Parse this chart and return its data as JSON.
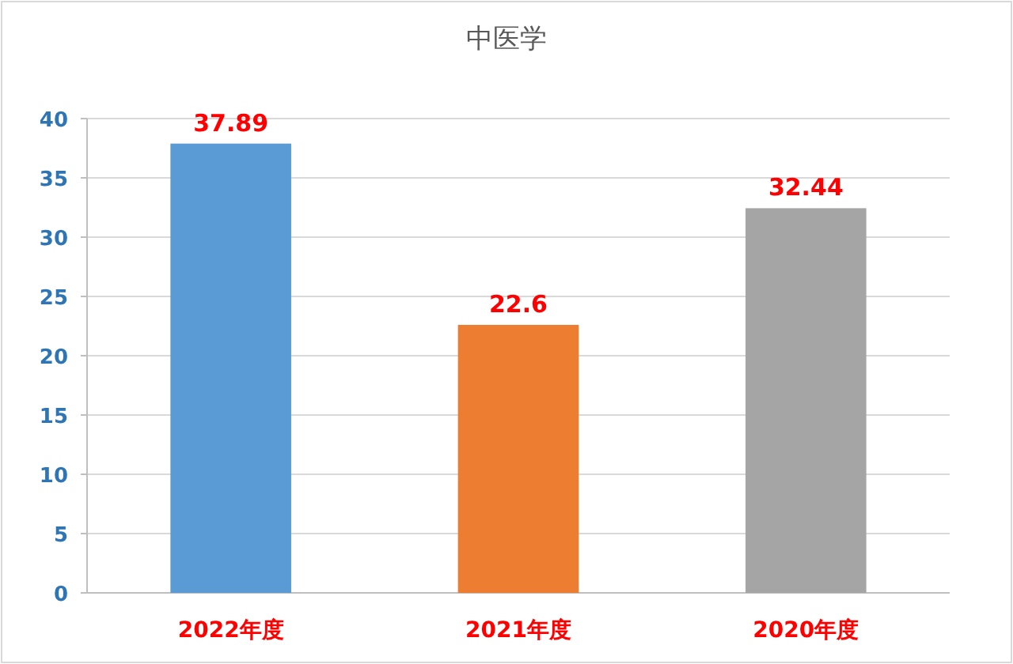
{
  "chart_data": {
    "type": "bar",
    "title": "中医学",
    "categories": [
      "2022年度",
      "2021年度",
      "2020年度"
    ],
    "values": [
      37.89,
      22.6,
      32.44
    ],
    "colors": [
      "#5b9bd5",
      "#ed7d31",
      "#a5a5a5"
    ],
    "ylim": [
      0,
      40
    ],
    "yticks": [
      0,
      5,
      10,
      15,
      20,
      25,
      30,
      35,
      40
    ],
    "grid": "y",
    "data_labels": true
  }
}
